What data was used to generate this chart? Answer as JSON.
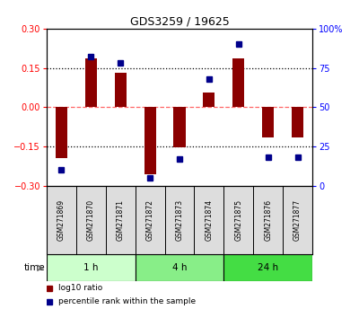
{
  "title": "GDS3259 / 19625",
  "samples": [
    "GSM271869",
    "GSM271870",
    "GSM271871",
    "GSM271872",
    "GSM271873",
    "GSM271874",
    "GSM271875",
    "GSM271876",
    "GSM271877"
  ],
  "log10_ratio": [
    -0.195,
    0.185,
    0.13,
    -0.255,
    -0.155,
    0.055,
    0.185,
    -0.115,
    -0.115
  ],
  "percentile_rank": [
    10,
    82,
    78,
    5,
    17,
    68,
    90,
    18,
    18
  ],
  "ylim_left": [
    -0.3,
    0.3
  ],
  "ylim_right": [
    0,
    100
  ],
  "yticks_left": [
    -0.3,
    -0.15,
    0,
    0.15,
    0.3
  ],
  "yticks_right": [
    0,
    25,
    50,
    75,
    100
  ],
  "hlines": [
    0.15,
    -0.15
  ],
  "bar_color": "#8B0000",
  "dot_color": "#00008B",
  "zero_line_color": "#FF6666",
  "hline_color": "#000000",
  "time_groups": [
    {
      "label": "1 h",
      "start": 0,
      "end": 3,
      "color": "#CCFFCC"
    },
    {
      "label": "4 h",
      "start": 3,
      "end": 6,
      "color": "#88EE88"
    },
    {
      "label": "24 h",
      "start": 6,
      "end": 9,
      "color": "#44DD44"
    }
  ],
  "legend_bar_label": "log10 ratio",
  "legend_dot_label": "percentile rank within the sample",
  "xlabel_time": "time"
}
